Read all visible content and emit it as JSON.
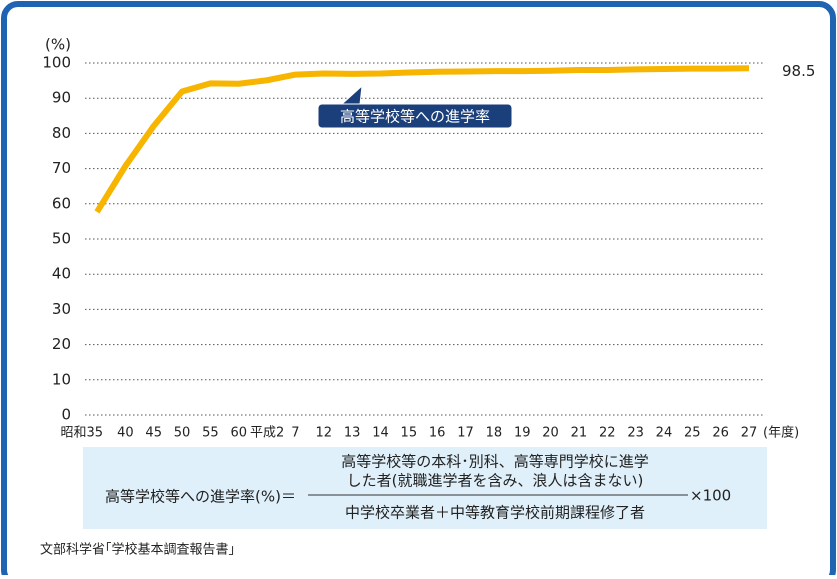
{
  "chart_data": {
    "type": "line",
    "y_label": "(%)",
    "x_label": "(年度)",
    "categories": [
      "昭和35",
      "40",
      "45",
      "50",
      "55",
      "60",
      "平成2",
      "7",
      "12",
      "13",
      "14",
      "15",
      "16",
      "17",
      "18",
      "19",
      "20",
      "21",
      "22",
      "23",
      "24",
      "25",
      "26",
      "27"
    ],
    "series": [
      {
        "name": "高等学校等への進学率",
        "color": "#f7b500",
        "values": [
          57.7,
          70.7,
          82.1,
          91.9,
          94.2,
          94.1,
          95.1,
          96.7,
          97.0,
          96.9,
          97.0,
          97.3,
          97.5,
          97.6,
          97.7,
          97.7,
          97.8,
          98.0,
          98.0,
          98.2,
          98.3,
          98.4,
          98.4,
          98.5
        ]
      }
    ],
    "ylim": [
      0,
      100
    ],
    "yticks": [
      0,
      10,
      20,
      30,
      40,
      50,
      60,
      70,
      80,
      90,
      100
    ],
    "grid": true
  },
  "formula": {
    "lhs": "高等学校等への進学率(%)＝",
    "numerator": [
      "高等学校等の本科･別科、高等専門学校に進学",
      "した者(就職進学者を含み、浪人は含まない)"
    ],
    "denominator": "中学校卒業者＋中等教育学校前期課程修了者",
    "multiplier": "×100"
  },
  "source": "文部科学省｢学校基本調査報告書｣"
}
